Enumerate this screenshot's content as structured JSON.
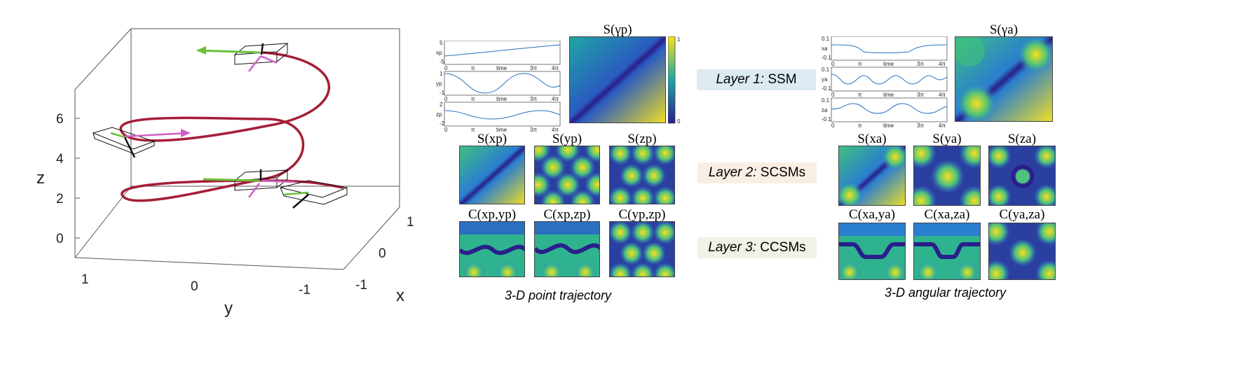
{
  "left_plot": {
    "axis_z_label": "z",
    "axis_y_label": "y",
    "axis_x_label": "x",
    "z_ticks": [
      "0",
      "2",
      "4",
      "6"
    ],
    "y_ticks": [
      "1",
      "0",
      "-1"
    ],
    "x_ticks": [
      "1",
      "0",
      "-1"
    ],
    "helix_color": "#a51e36"
  },
  "point_panel": {
    "ssm_title": "S(γp)",
    "colorbar": {
      "max": "1",
      "min": "0"
    },
    "mini_plots": [
      {
        "ylabel": "xp",
        "yticks": [
          "5",
          "0",
          "-5"
        ],
        "xticks": [
          "0",
          "π",
          "time",
          "3π",
          "4π"
        ]
      },
      {
        "ylabel": "yp",
        "yticks": [
          "1",
          "0",
          "-1"
        ],
        "xticks": [
          "0",
          "π",
          "time",
          "3π",
          "4π"
        ]
      },
      {
        "ylabel": "zp",
        "yticks": [
          "2",
          "0",
          "-2"
        ],
        "xticks": [
          "0",
          "π",
          "time",
          "3π",
          "4π"
        ]
      }
    ],
    "row2_titles": [
      "S(xp)",
      "S(yp)",
      "S(zp)"
    ],
    "row3_titles": [
      "C(xp,yp)",
      "C(xp,zp)",
      "C(yp,zp)"
    ],
    "caption": "3-D point trajectory"
  },
  "angular_panel": {
    "ssm_title": "S(γa)",
    "mini_plots": [
      {
        "ylabel": "xa",
        "yticks": [
          "0.1",
          "0",
          "-0.1"
        ],
        "xticks": [
          "0",
          "π",
          "time",
          "3π",
          "4π"
        ]
      },
      {
        "ylabel": "ya",
        "yticks": [
          "0.1",
          "0",
          "-0.1"
        ],
        "xticks": [
          "0",
          "π",
          "time",
          "3π",
          "4π"
        ]
      },
      {
        "ylabel": "za",
        "yticks": [
          "0.1",
          "0",
          "-0.1"
        ],
        "xticks": [
          "0",
          "π",
          "time",
          "3π",
          "4π"
        ]
      }
    ],
    "row2_titles": [
      "S(xa)",
      "S(ya)",
      "S(za)"
    ],
    "row3_titles": [
      "C(xa,ya)",
      "C(xa,za)",
      "C(ya,za)"
    ],
    "caption": "3-D angular trajectory"
  },
  "layers": [
    {
      "name": "Layer 1:",
      "type": "SSM",
      "bg": "#dcebf2"
    },
    {
      "name": "Layer 2:",
      "type": "SCSMs",
      "bg": "#f9eee4"
    },
    {
      "name": "Layer 3:",
      "type": "CCSMs",
      "bg": "#eef2e7"
    }
  ],
  "colors": {
    "map_low": "#2a1f8a",
    "map_mid": "#1fa6a4",
    "map_high": "#f5e11f",
    "arrow_green": "#6abf3c",
    "arrow_pink": "#d05fc4"
  }
}
